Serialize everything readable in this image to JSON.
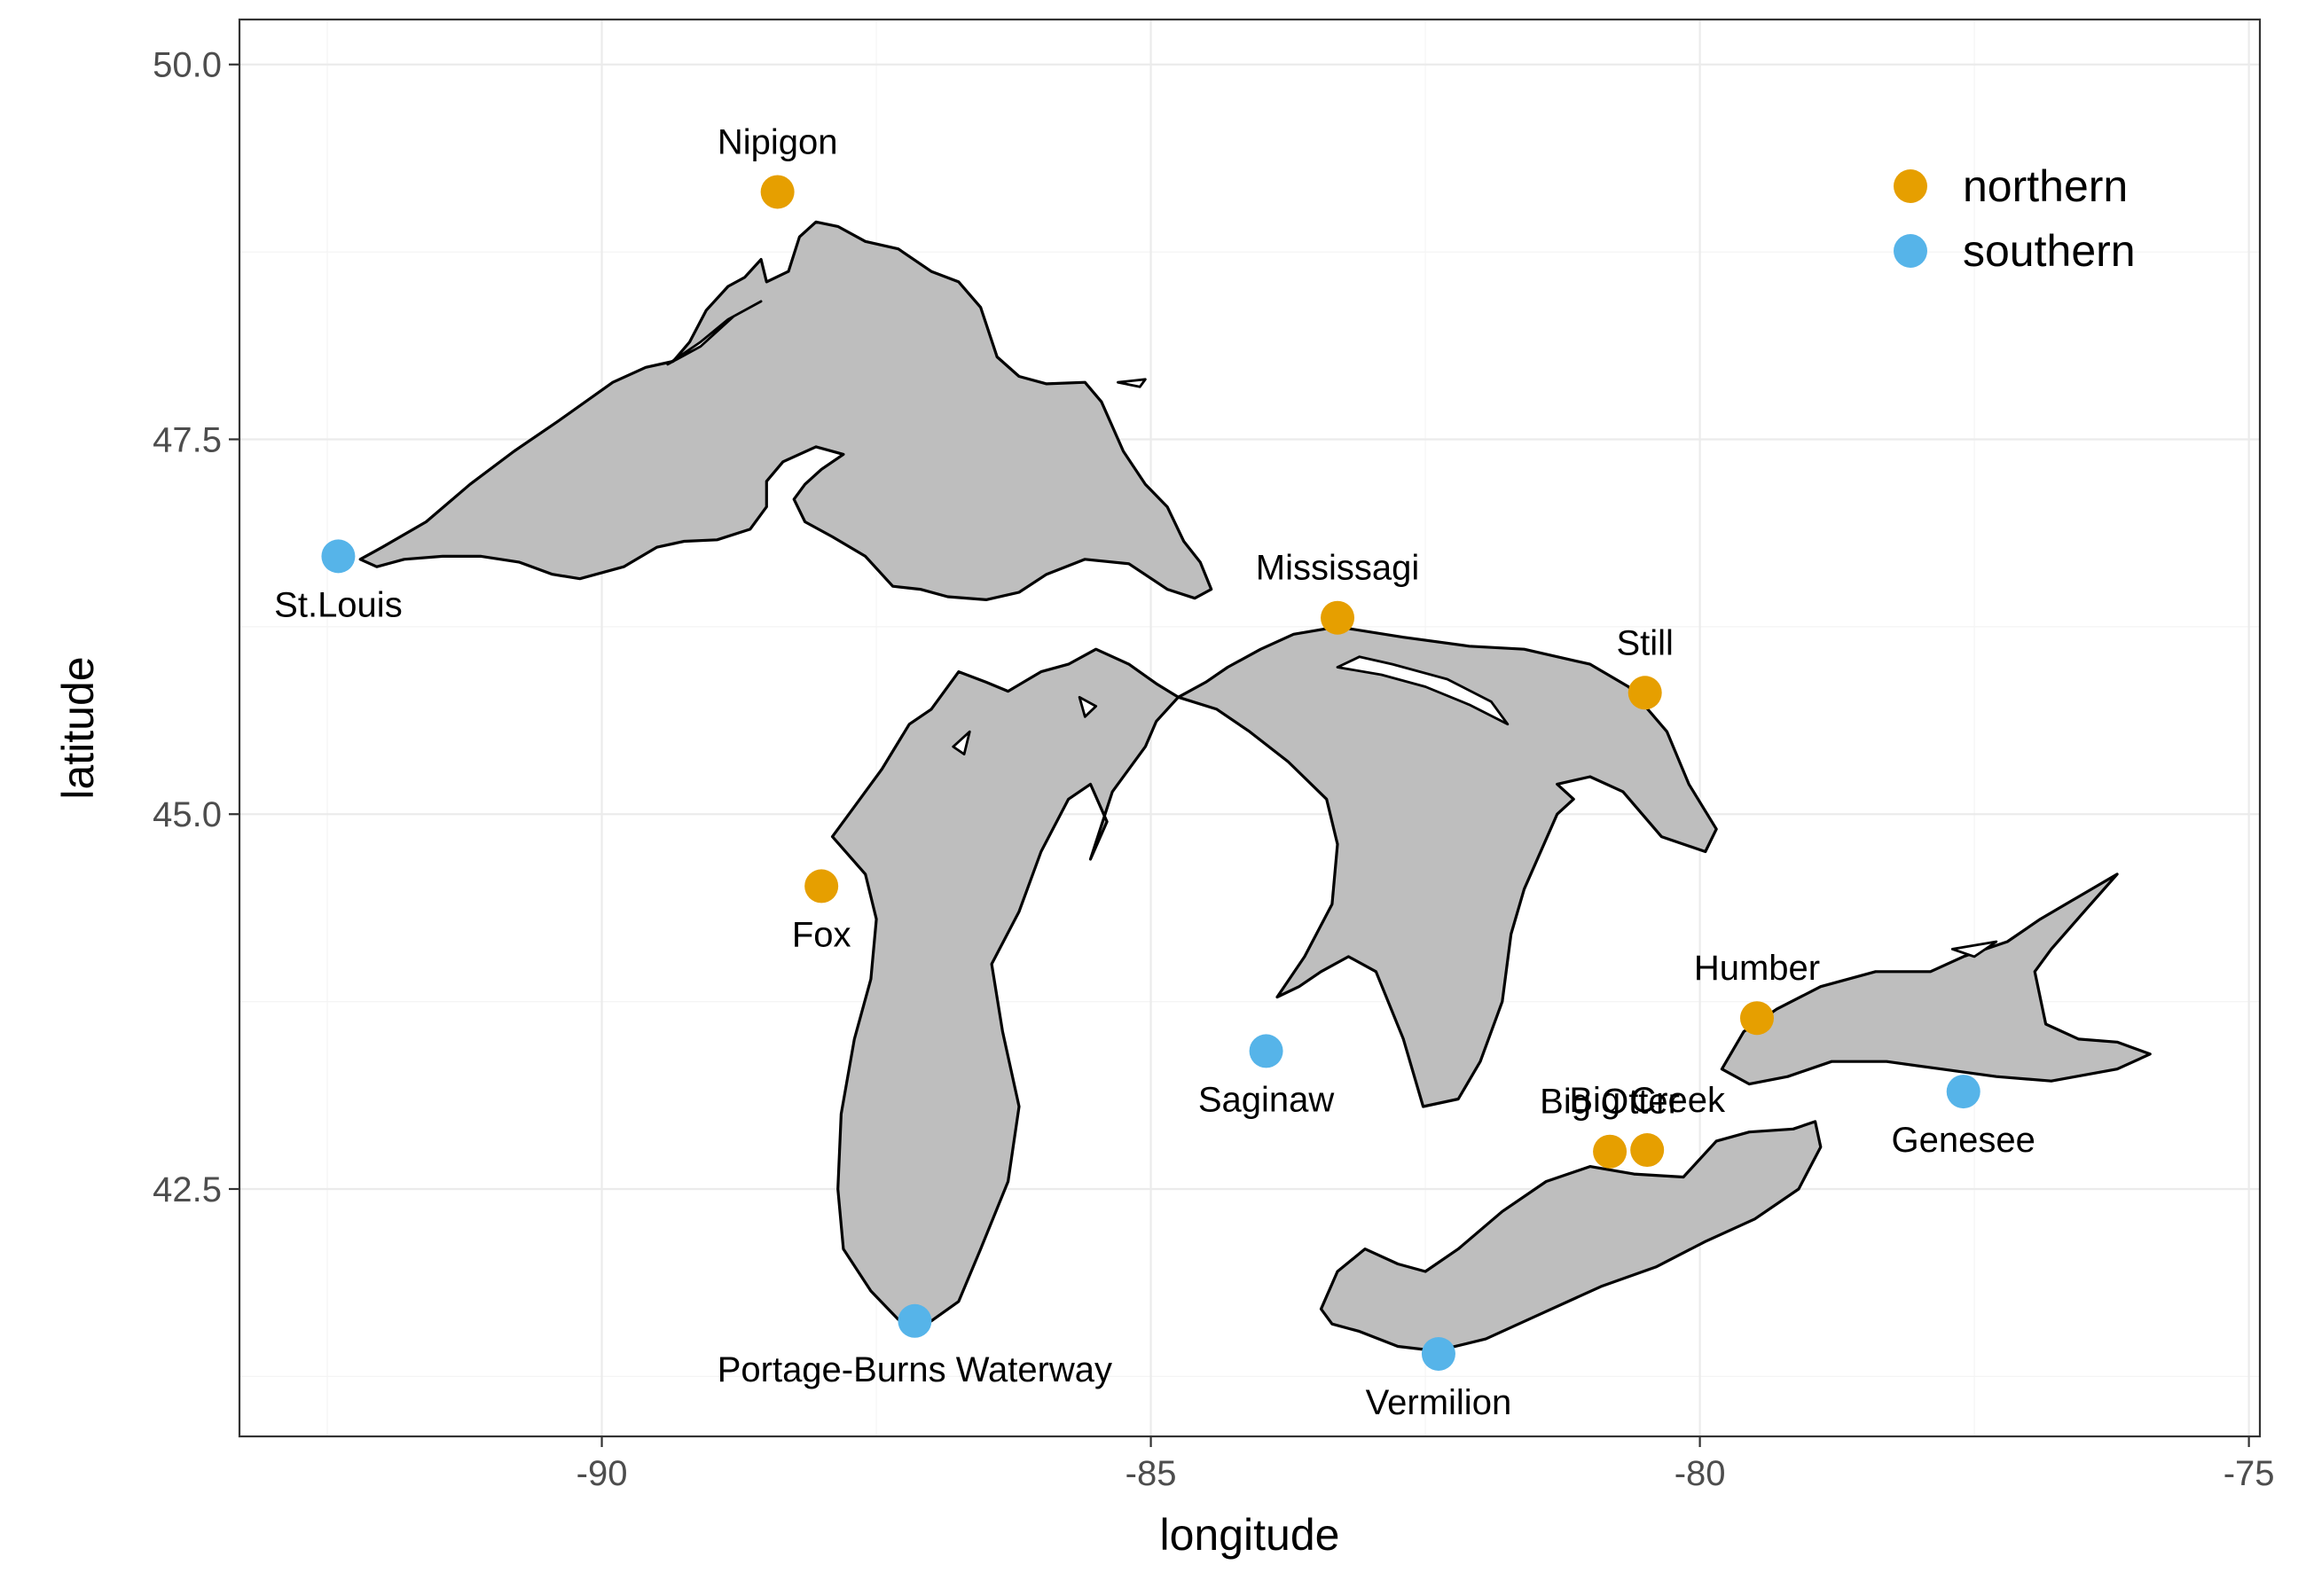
{
  "axes": {
    "xlabel": "longitude",
    "ylabel": "latitude",
    "xlim": [
      -93.3,
      -74.9
    ],
    "ylim": [
      40.85,
      50.3
    ],
    "x_ticks": [
      -90,
      -85,
      -80,
      -75
    ],
    "x_tick_labels": [
      "-90",
      "-85",
      "-80",
      "-75"
    ],
    "y_ticks": [
      42.5,
      45.0,
      47.5,
      50.0
    ],
    "y_tick_labels": [
      "42.5",
      "45.0",
      "47.5",
      "50.0"
    ],
    "x_minor": [
      -92.5,
      -87.5,
      -82.5,
      -77.5
    ],
    "y_minor": [
      41.25,
      43.75,
      46.25,
      48.75
    ]
  },
  "legend": {
    "position": "top-right",
    "items": [
      {
        "label": "northern",
        "color": "#E69F00"
      },
      {
        "label": "southern",
        "color": "#56B4E9"
      }
    ]
  },
  "colors": {
    "northern": "#E69F00",
    "southern": "#56B4E9",
    "lake_fill": "#bebebe"
  },
  "sites": [
    {
      "name": "Nipigon",
      "region": "northern",
      "lon": -88.4,
      "lat": 49.15,
      "label_pos": "above"
    },
    {
      "name": "St.Louis",
      "region": "southern",
      "lon": -92.4,
      "lat": 46.72,
      "label_pos": "below"
    },
    {
      "name": "Mississagi",
      "region": "northern",
      "lon": -83.3,
      "lat": 46.31,
      "label_pos": "above"
    },
    {
      "name": "Still",
      "region": "northern",
      "lon": -80.5,
      "lat": 45.81,
      "label_pos": "above"
    },
    {
      "name": "Fox",
      "region": "northern",
      "lon": -88.0,
      "lat": 44.52,
      "label_pos": "below"
    },
    {
      "name": "Humber",
      "region": "northern",
      "lon": -79.48,
      "lat": 43.64,
      "label_pos": "above"
    },
    {
      "name": "Saginaw",
      "region": "southern",
      "lon": -83.95,
      "lat": 43.42,
      "label_pos": "below"
    },
    {
      "name": "Genesee",
      "region": "southern",
      "lon": -77.6,
      "lat": 43.15,
      "label_pos": "below"
    },
    {
      "name": "Big Creek",
      "region": "northern",
      "lon": -80.48,
      "lat": 42.76,
      "label_pos": "above"
    },
    {
      "name": "Big Otter",
      "region": "northern",
      "lon": -80.82,
      "lat": 42.75,
      "label_pos": "above"
    },
    {
      "name": "Portage-Burns Waterway",
      "region": "southern",
      "lon": -87.15,
      "lat": 41.62,
      "label_pos": "below"
    },
    {
      "name": "Vermilion",
      "region": "southern",
      "lon": -82.38,
      "lat": 41.4,
      "label_pos": "below"
    }
  ],
  "lakes": [
    {
      "name": "superior",
      "outline": [
        [
          -92.2,
          46.7
        ],
        [
          -92.0,
          46.78
        ],
        [
          -91.6,
          46.95
        ],
        [
          -91.2,
          47.2
        ],
        [
          -90.8,
          47.42
        ],
        [
          -90.4,
          47.62
        ],
        [
          -89.9,
          47.88
        ],
        [
          -89.6,
          47.98
        ],
        [
          -89.35,
          48.02
        ],
        [
          -89.2,
          48.15
        ],
        [
          -89.05,
          48.36
        ],
        [
          -88.85,
          48.52
        ],
        [
          -88.7,
          48.58
        ],
        [
          -88.55,
          48.7
        ],
        [
          -88.5,
          48.55
        ],
        [
          -88.3,
          48.62
        ],
        [
          -88.2,
          48.85
        ],
        [
          -88.05,
          48.95
        ],
        [
          -87.85,
          48.92
        ],
        [
          -87.6,
          48.82
        ],
        [
          -87.3,
          48.77
        ],
        [
          -87.0,
          48.62
        ],
        [
          -86.75,
          48.55
        ],
        [
          -86.55,
          48.38
        ],
        [
          -86.4,
          48.05
        ],
        [
          -86.2,
          47.92
        ],
        [
          -85.95,
          47.87
        ],
        [
          -85.6,
          47.88
        ],
        [
          -85.45,
          47.75
        ],
        [
          -85.25,
          47.42
        ],
        [
          -85.05,
          47.2
        ],
        [
          -84.85,
          47.05
        ],
        [
          -84.7,
          46.82
        ],
        [
          -84.55,
          46.68
        ],
        [
          -84.45,
          46.5
        ],
        [
          -84.6,
          46.44
        ],
        [
          -84.85,
          46.5
        ],
        [
          -85.2,
          46.67
        ],
        [
          -85.6,
          46.7
        ],
        [
          -85.95,
          46.6
        ],
        [
          -86.2,
          46.48
        ],
        [
          -86.5,
          46.43
        ],
        [
          -86.85,
          46.45
        ],
        [
          -87.1,
          46.5
        ],
        [
          -87.35,
          46.52
        ],
        [
          -87.6,
          46.72
        ],
        [
          -87.9,
          46.85
        ],
        [
          -88.15,
          46.95
        ],
        [
          -88.25,
          47.1
        ],
        [
          -88.15,
          47.2
        ],
        [
          -88.0,
          47.3
        ],
        [
          -87.8,
          47.4
        ],
        [
          -88.05,
          47.45
        ],
        [
          -88.35,
          47.35
        ],
        [
          -88.5,
          47.22
        ],
        [
          -88.5,
          47.05
        ],
        [
          -88.65,
          46.9
        ],
        [
          -88.95,
          46.83
        ],
        [
          -89.25,
          46.82
        ],
        [
          -89.5,
          46.78
        ],
        [
          -89.8,
          46.65
        ],
        [
          -90.2,
          46.57
        ],
        [
          -90.45,
          46.6
        ],
        [
          -90.75,
          46.68
        ],
        [
          -91.1,
          46.72
        ],
        [
          -91.45,
          46.72
        ],
        [
          -91.8,
          46.7
        ],
        [
          -92.05,
          46.65
        ]
      ],
      "islands": [
        [
          [
            -89.4,
            48.0
          ],
          [
            -89.1,
            48.15
          ],
          [
            -88.85,
            48.3
          ],
          [
            -88.55,
            48.42
          ],
          [
            -88.8,
            48.32
          ],
          [
            -89.1,
            48.12
          ],
          [
            -89.35,
            48.02
          ]
        ],
        [
          [
            -85.3,
            47.88
          ],
          [
            -85.05,
            47.9
          ],
          [
            -85.1,
            47.85
          ]
        ]
      ]
    },
    {
      "name": "michigan",
      "outline": [
        [
          -84.75,
          45.78
        ],
        [
          -84.95,
          45.87
        ],
        [
          -85.2,
          46.0
        ],
        [
          -85.5,
          46.1
        ],
        [
          -85.75,
          46.0
        ],
        [
          -86.0,
          45.95
        ],
        [
          -86.3,
          45.82
        ],
        [
          -86.5,
          45.88
        ],
        [
          -86.75,
          45.95
        ],
        [
          -87.0,
          45.7
        ],
        [
          -87.2,
          45.6
        ],
        [
          -87.45,
          45.3
        ],
        [
          -87.7,
          45.05
        ],
        [
          -87.9,
          44.85
        ],
        [
          -87.6,
          44.6
        ],
        [
          -87.5,
          44.3
        ],
        [
          -87.55,
          43.9
        ],
        [
          -87.7,
          43.5
        ],
        [
          -87.82,
          43.0
        ],
        [
          -87.85,
          42.5
        ],
        [
          -87.8,
          42.1
        ],
        [
          -87.55,
          41.82
        ],
        [
          -87.3,
          41.63
        ],
        [
          -87.0,
          41.62
        ],
        [
          -86.75,
          41.75
        ],
        [
          -86.55,
          42.1
        ],
        [
          -86.3,
          42.55
        ],
        [
          -86.2,
          43.05
        ],
        [
          -86.35,
          43.55
        ],
        [
          -86.45,
          44.0
        ],
        [
          -86.2,
          44.35
        ],
        [
          -86.0,
          44.75
        ],
        [
          -85.75,
          45.1
        ],
        [
          -85.55,
          45.2
        ],
        [
          -85.4,
          44.95
        ],
        [
          -85.55,
          44.7
        ],
        [
          -85.35,
          45.15
        ],
        [
          -85.05,
          45.45
        ],
        [
          -84.95,
          45.62
        ]
      ],
      "islands": [
        [
          [
            -86.8,
            45.45
          ],
          [
            -86.65,
            45.55
          ],
          [
            -86.7,
            45.4
          ]
        ],
        [
          [
            -85.65,
            45.78
          ],
          [
            -85.5,
            45.72
          ],
          [
            -85.6,
            45.65
          ]
        ]
      ]
    },
    {
      "name": "huron",
      "outline": [
        [
          -84.75,
          45.78
        ],
        [
          -84.4,
          45.7
        ],
        [
          -84.1,
          45.55
        ],
        [
          -83.75,
          45.35
        ],
        [
          -83.4,
          45.1
        ],
        [
          -83.3,
          44.8
        ],
        [
          -83.35,
          44.4
        ],
        [
          -83.6,
          44.05
        ],
        [
          -83.85,
          43.78
        ],
        [
          -83.65,
          43.85
        ],
        [
          -83.45,
          43.95
        ],
        [
          -83.2,
          44.05
        ],
        [
          -82.95,
          43.95
        ],
        [
          -82.7,
          43.5
        ],
        [
          -82.52,
          43.05
        ],
        [
          -82.2,
          43.1
        ],
        [
          -82.0,
          43.35
        ],
        [
          -81.8,
          43.75
        ],
        [
          -81.72,
          44.2
        ],
        [
          -81.6,
          44.5
        ],
        [
          -81.3,
          45.0
        ],
        [
          -81.15,
          45.1
        ],
        [
          -81.3,
          45.2
        ],
        [
          -81.0,
          45.25
        ],
        [
          -80.7,
          45.15
        ],
        [
          -80.35,
          44.85
        ],
        [
          -79.95,
          44.75
        ],
        [
          -79.85,
          44.9
        ],
        [
          -80.1,
          45.2
        ],
        [
          -80.3,
          45.55
        ],
        [
          -80.65,
          45.85
        ],
        [
          -81.0,
          46.0
        ],
        [
          -81.6,
          46.1
        ],
        [
          -82.1,
          46.12
        ],
        [
          -82.7,
          46.18
        ],
        [
          -83.3,
          46.25
        ],
        [
          -83.7,
          46.2
        ],
        [
          -84.0,
          46.1
        ],
        [
          -84.3,
          45.98
        ],
        [
          -84.5,
          45.88
        ]
      ],
      "islands": [
        [
          [
            -83.3,
            45.98
          ],
          [
            -82.9,
            45.93
          ],
          [
            -82.5,
            45.85
          ],
          [
            -82.1,
            45.73
          ],
          [
            -81.75,
            45.6
          ],
          [
            -81.9,
            45.75
          ],
          [
            -82.3,
            45.9
          ],
          [
            -82.8,
            46.0
          ],
          [
            -83.1,
            46.05
          ]
        ]
      ]
    },
    {
      "name": "erie",
      "outline": [
        [
          -83.45,
          41.7
        ],
        [
          -83.3,
          41.95
        ],
        [
          -83.05,
          42.1
        ],
        [
          -82.75,
          42.0
        ],
        [
          -82.5,
          41.95
        ],
        [
          -82.2,
          42.1
        ],
        [
          -81.8,
          42.35
        ],
        [
          -81.4,
          42.55
        ],
        [
          -81.0,
          42.65
        ],
        [
          -80.6,
          42.6
        ],
        [
          -80.15,
          42.58
        ],
        [
          -79.85,
          42.82
        ],
        [
          -79.55,
          42.88
        ],
        [
          -79.15,
          42.9
        ],
        [
          -78.95,
          42.95
        ],
        [
          -78.9,
          42.78
        ],
        [
          -79.1,
          42.5
        ],
        [
          -79.5,
          42.3
        ],
        [
          -79.95,
          42.15
        ],
        [
          -80.4,
          41.98
        ],
        [
          -80.9,
          41.85
        ],
        [
          -81.5,
          41.65
        ],
        [
          -81.95,
          41.5
        ],
        [
          -82.4,
          41.42
        ],
        [
          -82.75,
          41.45
        ],
        [
          -83.1,
          41.55
        ],
        [
          -83.35,
          41.6
        ]
      ],
      "islands": []
    },
    {
      "name": "ontario",
      "outline": [
        [
          -79.8,
          43.3
        ],
        [
          -79.6,
          43.55
        ],
        [
          -79.3,
          43.7
        ],
        [
          -78.9,
          43.85
        ],
        [
          -78.4,
          43.95
        ],
        [
          -77.9,
          43.95
        ],
        [
          -77.6,
          44.05
        ],
        [
          -77.2,
          44.15
        ],
        [
          -76.9,
          44.3
        ],
        [
          -76.55,
          44.45
        ],
        [
          -76.2,
          44.6
        ],
        [
          -76.5,
          44.35
        ],
        [
          -76.8,
          44.1
        ],
        [
          -76.95,
          43.95
        ],
        [
          -76.85,
          43.6
        ],
        [
          -76.55,
          43.5
        ],
        [
          -76.2,
          43.48
        ],
        [
          -75.9,
          43.4
        ],
        [
          -76.2,
          43.3
        ],
        [
          -76.8,
          43.22
        ],
        [
          -77.3,
          43.25
        ],
        [
          -77.8,
          43.3
        ],
        [
          -78.3,
          43.35
        ],
        [
          -78.8,
          43.35
        ],
        [
          -79.2,
          43.25
        ],
        [
          -79.55,
          43.2
        ]
      ],
      "islands": [
        [
          [
            -77.7,
            44.1
          ],
          [
            -77.3,
            44.15
          ],
          [
            -77.5,
            44.05
          ]
        ]
      ]
    }
  ]
}
